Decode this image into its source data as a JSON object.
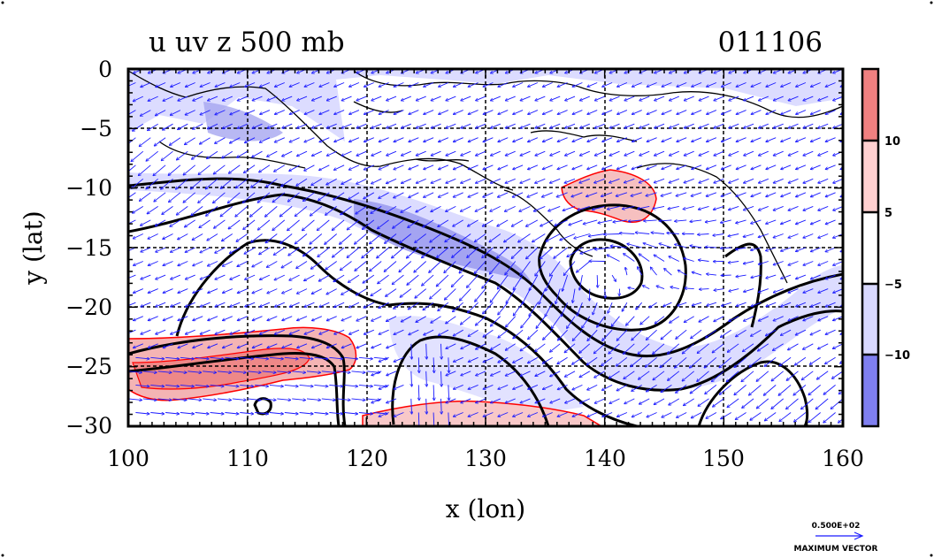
{
  "chart_data": {
    "type": "heatmap",
    "title": "u uv z 500 mb",
    "date_label": "011106",
    "xlabel": "x (lon)",
    "ylabel": "y (lat)",
    "xlim": [
      100,
      160
    ],
    "ylim": [
      -30,
      0
    ],
    "x_ticks": [
      100,
      110,
      120,
      130,
      140,
      150,
      160
    ],
    "y_ticks": [
      0,
      -5,
      -10,
      -15,
      -20,
      -25,
      -30
    ],
    "x_tick_labels": [
      "100",
      "110",
      "120",
      "130",
      "140",
      "150",
      "160"
    ],
    "y_tick_labels": [
      "0",
      "−5",
      "−10",
      "−15",
      "−20",
      "−25",
      "−30"
    ],
    "grid": true,
    "colorbar": {
      "levels": [
        -15,
        -10,
        -5,
        5,
        10,
        15
      ],
      "tick_labels": [
        "10",
        "5",
        "−5",
        "−10"
      ],
      "colors": [
        "#7f7ff0",
        "#d9d9ff",
        "#ffffff",
        "#ffd0d0",
        "#f08080"
      ]
    },
    "vector_key": {
      "value_label": "0.500E+02",
      "caption": "MAXIMUM VECTOR"
    }
  }
}
